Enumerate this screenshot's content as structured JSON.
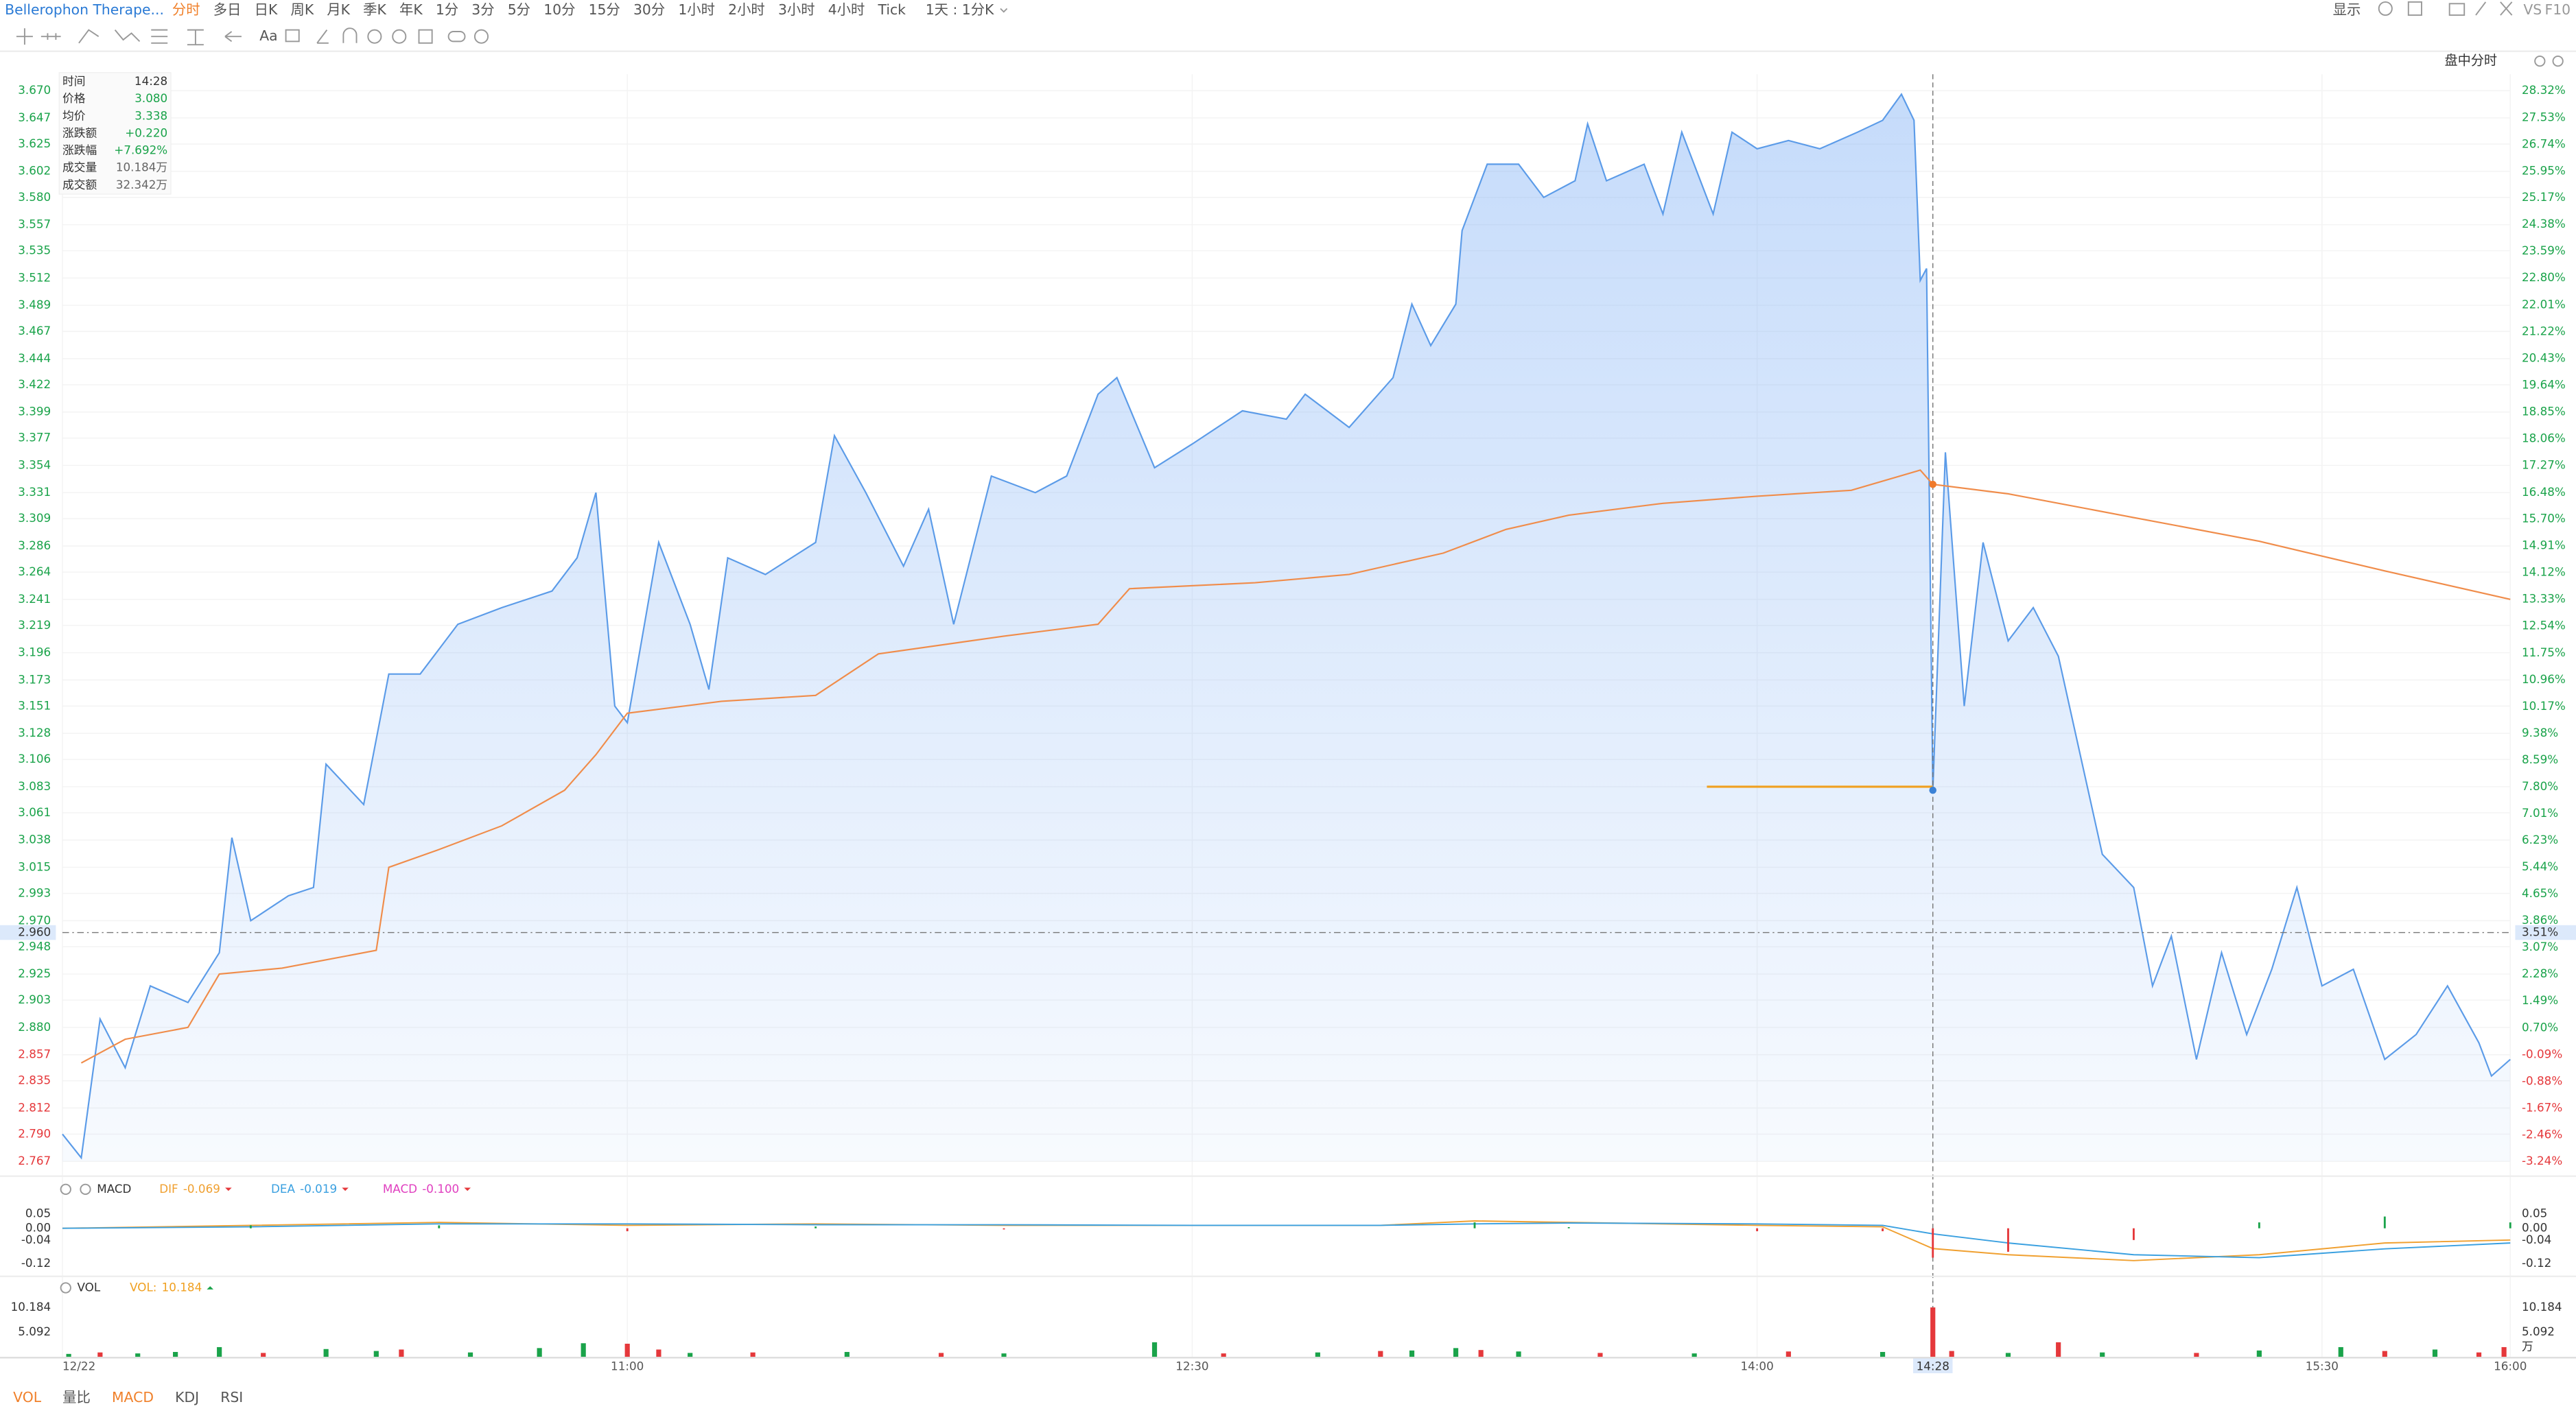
{
  "toolbar": {
    "symbol": "Bellerophon Therape...",
    "periods": [
      "分时",
      "多日",
      "日K",
      "周K",
      "月K",
      "季K",
      "年K",
      "1分",
      "3分",
      "5分",
      "10分",
      "15分",
      "30分",
      "1小时",
      "2小时",
      "3小时",
      "4小时",
      "Tick"
    ],
    "active": 0,
    "range_select": "1天 : 1分K",
    "display": "显示",
    "vs": "VS",
    "f10": "F10",
    "text_tool": "Aa",
    "mode": "盘中分时"
  },
  "info_box": [
    {
      "label": "时间",
      "value": "14:28",
      "color": "#333333"
    },
    {
      "label": "价格",
      "value": "3.080",
      "color": "#1aa34a"
    },
    {
      "label": "均价",
      "value": "3.338",
      "color": "#1aa34a"
    },
    {
      "label": "涨跌额",
      "value": "+0.220",
      "color": "#1aa34a"
    },
    {
      "label": "涨跌幅",
      "value": "+7.692%",
      "color": "#1aa34a"
    },
    {
      "label": "成交量",
      "value": "10.184万",
      "color": "#666666"
    },
    {
      "label": "成交额",
      "value": "32.342万",
      "color": "#666666"
    }
  ],
  "indicator_tabs": {
    "items": [
      "VOL",
      "量比",
      "MACD",
      "KDJ",
      "RSI"
    ],
    "active": [
      0,
      2
    ]
  },
  "chart_data": [
    {
      "type": "line",
      "area": true,
      "grid": true,
      "xlim": [
        "09:30",
        "16:00"
      ],
      "xticks": [
        {
          "value": "09:30",
          "label": "12/22"
        },
        "11:00",
        "12:30",
        "14:00",
        "15:30",
        "16:00"
      ],
      "ylim": [
        2.767,
        3.67
      ],
      "yticks": [
        {
          "value": 3.67,
          "label": "3.670"
        },
        3.647,
        3.625,
        3.602,
        {
          "value": 3.58,
          "label": "3.580"
        },
        3.557,
        3.535,
        3.512,
        3.489,
        3.467,
        3.444,
        3.422,
        3.399,
        3.377,
        3.354,
        3.331,
        3.309,
        3.286,
        3.264,
        3.241,
        3.219,
        3.196,
        3.173,
        3.151,
        3.128,
        3.106,
        3.083,
        3.061,
        3.038,
        3.015,
        2.993,
        {
          "value": 2.97,
          "label": "2.970"
        },
        2.948,
        2.925,
        2.903,
        {
          "value": 2.88,
          "label": "2.880"
        },
        2.857,
        2.835,
        2.812,
        {
          "value": 2.79,
          "label": "2.790"
        },
        2.767
      ],
      "y2lim": [
        -3.24,
        28.32
      ],
      "y2ticks": [
        {
          "value": 28.32,
          "label": "28.32%"
        },
        {
          "value": 27.53,
          "label": "27.53%"
        },
        {
          "value": 26.74,
          "label": "26.74%"
        },
        {
          "value": 25.95,
          "label": "25.95%"
        },
        {
          "value": 25.17,
          "label": "25.17%"
        },
        {
          "value": 24.38,
          "label": "24.38%"
        },
        {
          "value": 23.59,
          "label": "23.59%"
        },
        {
          "value": 22.8,
          "label": "22.80%"
        },
        {
          "value": 22.01,
          "label": "22.01%"
        },
        {
          "value": 21.22,
          "label": "21.22%"
        },
        {
          "value": 20.43,
          "label": "20.43%"
        },
        {
          "value": 19.64,
          "label": "19.64%"
        },
        {
          "value": 18.85,
          "label": "18.85%"
        },
        {
          "value": 18.06,
          "label": "18.06%"
        },
        {
          "value": 17.27,
          "label": "17.27%"
        },
        {
          "value": 16.48,
          "label": "16.48%"
        },
        {
          "value": 15.7,
          "label": "15.70%"
        },
        {
          "value": 14.91,
          "label": "14.91%"
        },
        {
          "value": 14.12,
          "label": "14.12%"
        },
        {
          "value": 13.33,
          "label": "13.33%"
        },
        {
          "value": 12.54,
          "label": "12.54%"
        },
        {
          "value": 11.75,
          "label": "11.75%"
        },
        {
          "value": 10.96,
          "label": "10.96%"
        },
        {
          "value": 10.17,
          "label": "10.17%"
        },
        {
          "value": 9.38,
          "label": "9.38%"
        },
        {
          "value": 8.59,
          "label": "8.59%"
        },
        {
          "value": 7.8,
          "label": "7.80%"
        },
        {
          "value": 7.01,
          "label": "7.01%"
        },
        {
          "value": 6.23,
          "label": "6.23%"
        },
        {
          "value": 5.44,
          "label": "5.44%"
        },
        {
          "value": 4.65,
          "label": "4.65%"
        },
        {
          "value": 3.86,
          "label": "3.86%"
        },
        {
          "value": 3.07,
          "label": "3.07%"
        },
        {
          "value": 2.28,
          "label": "2.28%"
        },
        {
          "value": 1.49,
          "label": "1.49%"
        },
        {
          "value": 0.7,
          "label": "0.70%"
        },
        {
          "value": -0.09,
          "label": "-0.09%"
        },
        {
          "value": -0.88,
          "label": "-0.88%"
        },
        {
          "value": -1.67,
          "label": "-1.67%"
        },
        {
          "value": -2.46,
          "label": "-2.46%"
        },
        {
          "value": -3.24,
          "label": "-3.24%"
        }
      ],
      "up_color": "#1aa34a",
      "down_color": "#e5383b",
      "series": [
        {
          "color": "#5b9be8",
          "x": [
            "09:30",
            "09:33",
            "09:36",
            "09:40",
            "09:44",
            "09:50",
            "09:55",
            "09:57",
            "10:00",
            "10:06",
            "10:10",
            "10:12",
            "10:18",
            "10:22",
            "10:27",
            "10:33",
            "10:40",
            "10:48",
            "10:52",
            "10:55",
            "10:58",
            "11:00",
            "11:05",
            "11:10",
            "11:13",
            "11:16",
            "11:22",
            "11:30",
            "11:33",
            "11:38",
            "11:44",
            "11:48",
            "11:52",
            "11:58",
            "12:05",
            "12:10",
            "12:15",
            "12:18",
            "12:24",
            "12:30",
            "12:38",
            "12:45",
            "12:48",
            "12:55",
            "13:02",
            "13:05",
            "13:08",
            "13:12",
            "13:13",
            "13:17",
            "13:22",
            "13:26",
            "13:31",
            "13:33",
            "13:36",
            "13:42",
            "13:45",
            "13:48",
            "13:53",
            "13:56",
            "14:00",
            "14:05",
            "14:10",
            "14:16",
            "14:20",
            "14:23",
            "14:25",
            "14:26",
            "14:27",
            "14:28",
            "14:30",
            "14:33",
            "14:36",
            "14:40",
            "14:44",
            "14:48",
            "14:55",
            "15:00",
            "15:03",
            "15:06",
            "15:10",
            "15:14",
            "15:18",
            "15:22",
            "15:26",
            "15:30",
            "15:35",
            "15:40",
            "15:45",
            "15:50",
            "15:55",
            "15:57",
            "16:00"
          ],
          "values": [
            2.79,
            2.77,
            2.887,
            2.846,
            2.915,
            2.901,
            2.943,
            3.04,
            2.97,
            2.991,
            2.998,
            3.102,
            3.068,
            3.178,
            3.178,
            3.22,
            3.234,
            3.248,
            3.276,
            3.331,
            3.151,
            3.137,
            3.289,
            3.22,
            3.165,
            3.276,
            3.262,
            3.289,
            3.379,
            3.331,
            3.269,
            3.317,
            3.22,
            3.345,
            3.331,
            3.345,
            3.414,
            3.428,
            3.352,
            3.372,
            3.4,
            3.393,
            3.414,
            3.386,
            3.428,
            3.49,
            3.455,
            3.49,
            3.552,
            3.608,
            3.608,
            3.58,
            3.594,
            3.642,
            3.594,
            3.608,
            3.566,
            3.635,
            3.566,
            3.635,
            3.621,
            3.628,
            3.621,
            3.635,
            3.645,
            3.667,
            3.645,
            3.51,
            3.52,
            3.08,
            3.365,
            3.151,
            3.289,
            3.206,
            3.234,
            3.193,
            3.026,
            2.998,
            2.915,
            2.957,
            2.853,
            2.943,
            2.874,
            2.929,
            2.998,
            2.915,
            2.929,
            2.853,
            2.874,
            2.915,
            2.867,
            2.839,
            2.853
          ]
        },
        {
          "color": "#f08c4a",
          "x": [
            "09:33",
            "09:40",
            "09:50",
            "09:55",
            "10:05",
            "10:20",
            "10:22",
            "10:30",
            "10:40",
            "10:50",
            "10:55",
            "11:00",
            "11:15",
            "11:30",
            "11:40",
            "12:00",
            "12:15",
            "12:20",
            "12:40",
            "12:55",
            "13:10",
            "13:20",
            "13:30",
            "13:45",
            "14:00",
            "14:15",
            "14:26",
            "14:28",
            "14:40",
            "15:00",
            "15:20",
            "15:40",
            "16:00"
          ],
          "values": [
            2.85,
            2.87,
            2.88,
            2.925,
            2.93,
            2.945,
            3.015,
            3.03,
            3.05,
            3.08,
            3.11,
            3.145,
            3.155,
            3.16,
            3.195,
            3.21,
            3.22,
            3.25,
            3.255,
            3.262,
            3.28,
            3.3,
            3.312,
            3.322,
            3.328,
            3.333,
            3.35,
            3.338,
            3.33,
            3.31,
            3.29,
            3.265,
            3.241
          ]
        }
      ],
      "price_line": {
        "x": [
          "13:52",
          "14:28"
        ],
        "value": 3.083,
        "color": "#f0a020"
      },
      "crosshair": {
        "x": "14:28",
        "y": {
          "value": 2.96,
          "label": "2.960"
        },
        "y2": {
          "value": 3.51,
          "label": "3.51%"
        }
      }
    },
    {
      "type": "macd",
      "title": "MACD",
      "xlim": [
        "09:30",
        "16:00"
      ],
      "ylim": [
        -0.13,
        0.06
      ],
      "yticks": [
        0.05,
        {
          "value": 0,
          "label": "0.00"
        },
        -0.04,
        -0.12
      ],
      "up_color": "#1aa34a",
      "down_color": "#e5383b",
      "x": [
        "09:30",
        "10:00",
        "10:30",
        "11:00",
        "11:30",
        "12:00",
        "12:30",
        "13:00",
        "13:15",
        "13:30",
        "14:00",
        "14:20",
        "14:28",
        "14:40",
        "15:00",
        "15:20",
        "15:40",
        "16:00"
      ],
      "series": [
        {
          "name": "DIF",
          "value_label": "-0.069",
          "color": "#f0a030",
          "values": [
            0,
            0.01,
            0.02,
            0.01,
            0.015,
            0.01,
            0.01,
            0.01,
            0.025,
            0.02,
            0.01,
            0.005,
            -0.069,
            -0.09,
            -0.11,
            -0.09,
            -0.05,
            -0.04
          ]
        },
        {
          "name": "DEA",
          "value_label": "-0.019",
          "color": "#3aa0e0",
          "values": [
            0,
            0.005,
            0.015,
            0.015,
            0.012,
            0.012,
            0.01,
            0.01,
            0.015,
            0.018,
            0.015,
            0.01,
            -0.019,
            -0.05,
            -0.09,
            -0.1,
            -0.07,
            -0.05
          ]
        },
        {
          "name": "MACD",
          "value_label": "-0.100",
          "color": "#e040c0",
          "bars": true,
          "values": [
            0,
            0.01,
            0.01,
            -0.01,
            0.006,
            -0.004,
            0,
            0,
            0.02,
            0.004,
            -0.01,
            -0.01,
            -0.1,
            -0.08,
            -0.04,
            0.02,
            0.04,
            0.02
          ]
        }
      ]
    },
    {
      "type": "bar",
      "title": "VOL",
      "unit": "万",
      "xlim": [
        "09:30",
        "16:00"
      ],
      "ylim": [
        0,
        10.5
      ],
      "yticks": [
        10.184,
        5.092
      ],
      "series": [
        {
          "name": "VOL:",
          "value_label": "10.184",
          "color": "#f0a020",
          "x": [
            "09:31",
            "09:36",
            "09:42",
            "09:48",
            "09:55",
            "10:02",
            "10:12",
            "10:20",
            "10:24",
            "10:35",
            "10:46",
            "10:53",
            "11:00",
            "11:05",
            "11:10",
            "11:20",
            "11:35",
            "11:50",
            "12:00",
            "12:24",
            "12:35",
            "12:50",
            "13:00",
            "13:05",
            "13:12",
            "13:16",
            "13:22",
            "13:35",
            "13:50",
            "14:05",
            "14:20",
            "14:28",
            "14:31",
            "14:40",
            "14:48",
            "14:55",
            "15:10",
            "15:20",
            "15:33",
            "15:40",
            "15:48",
            "15:55",
            "15:59"
          ],
          "values": [
            0.6,
            0.9,
            0.7,
            1.0,
            2.0,
            0.8,
            1.6,
            1.2,
            1.5,
            0.9,
            1.8,
            2.8,
            2.7,
            1.5,
            0.8,
            0.9,
            1.0,
            0.8,
            0.7,
            3.0,
            0.7,
            0.9,
            1.2,
            1.3,
            1.8,
            1.4,
            1.1,
            0.8,
            0.7,
            1.1,
            1.0,
            10.184,
            1.2,
            0.8,
            3.0,
            0.9,
            0.8,
            1.3,
            2.0,
            1.2,
            1.5,
            0.9,
            2.0
          ],
          "colors": [
            "#1aa34a",
            "#e5383b",
            "#1aa34a",
            "#1aa34a",
            "#1aa34a",
            "#e5383b",
            "#1aa34a",
            "#1aa34a",
            "#e5383b",
            "#1aa34a",
            "#1aa34a",
            "#1aa34a",
            "#e5383b",
            "#e5383b",
            "#1aa34a",
            "#e5383b",
            "#1aa34a",
            "#e5383b",
            "#1aa34a",
            "#1aa34a",
            "#e5383b",
            "#1aa34a",
            "#e5383b",
            "#1aa34a",
            "#1aa34a",
            "#e5383b",
            "#1aa34a",
            "#e5383b",
            "#1aa34a",
            "#e5383b",
            "#1aa34a",
            "#e5383b",
            "#e5383b",
            "#1aa34a",
            "#e5383b",
            "#1aa34a",
            "#e5383b",
            "#1aa34a",
            "#1aa34a",
            "#e5383b",
            "#1aa34a",
            "#e5383b",
            "#e5383b"
          ]
        }
      ]
    }
  ]
}
